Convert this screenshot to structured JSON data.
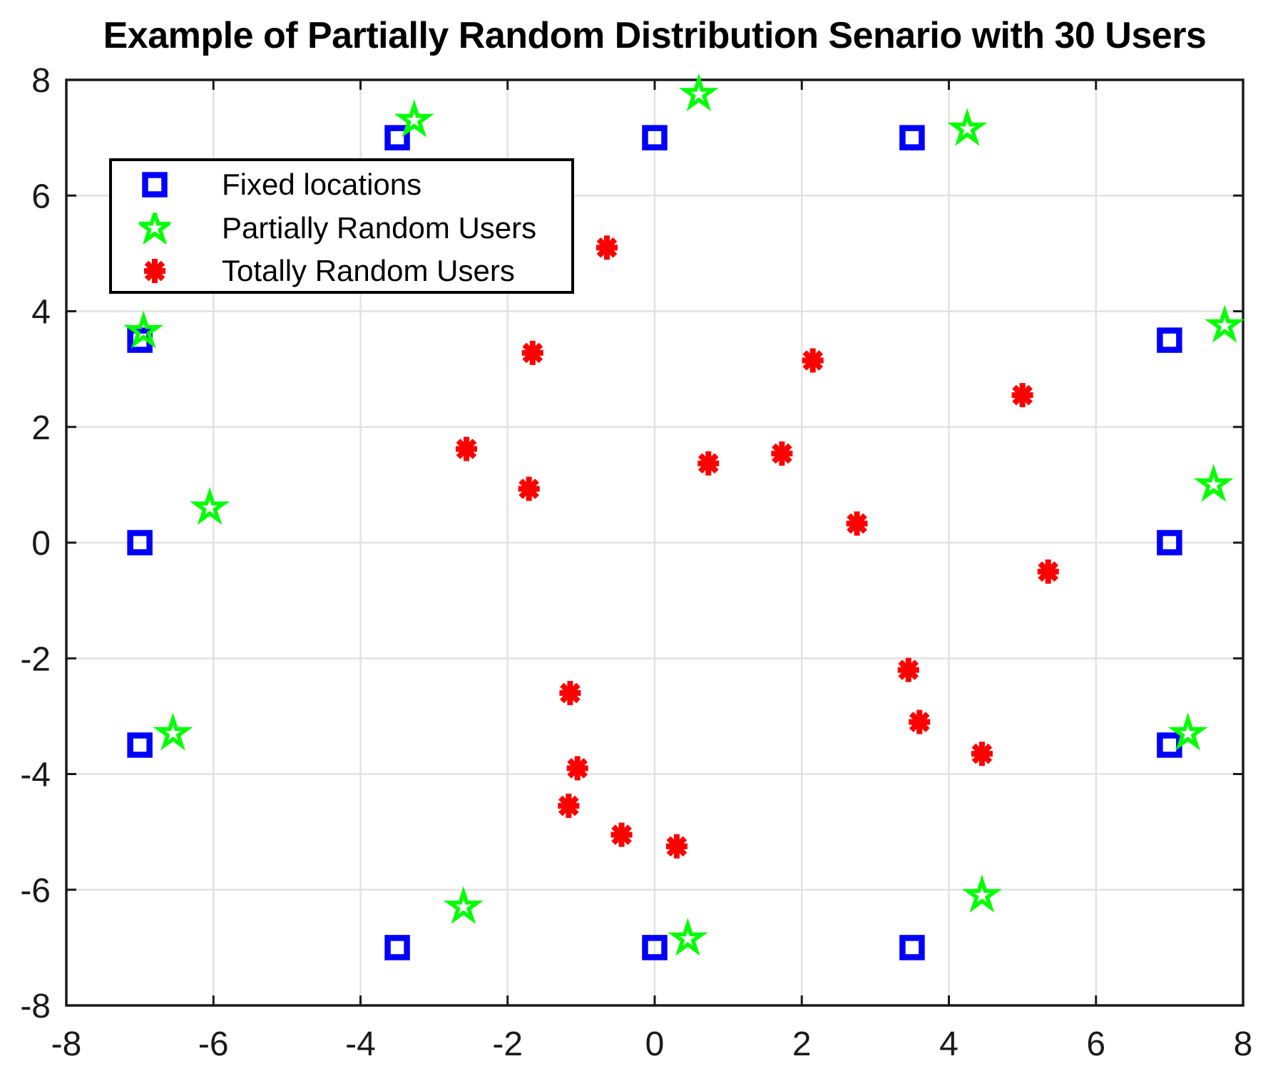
{
  "title": "Example of Partially Random Distribution Senario with 30 Users",
  "chart_data": {
    "type": "scatter",
    "title": "Example of Partially Random Distribution Senario with 30 Users",
    "xlabel": "",
    "ylabel": "",
    "xlim": [
      -8,
      8
    ],
    "ylim": [
      -8,
      8
    ],
    "xticks": [
      -8,
      -6,
      -4,
      -2,
      0,
      2,
      4,
      6,
      8
    ],
    "yticks": [
      -8,
      -6,
      -4,
      -2,
      0,
      2,
      4,
      6,
      8
    ],
    "grid": true,
    "legend_position": "top-left",
    "axis_color": "#1a1a1a",
    "grid_color": "#e2e2e2",
    "background_color": "#ffffff",
    "series": [
      {
        "name": "Fixed locations",
        "marker": "square",
        "color": "#0000ff",
        "points": [
          [
            -3.5,
            7
          ],
          [
            0,
            7
          ],
          [
            3.5,
            7
          ],
          [
            -7,
            3.5
          ],
          [
            -7,
            0
          ],
          [
            -7,
            -3.5
          ],
          [
            7,
            3.5
          ],
          [
            7,
            0
          ],
          [
            7,
            -3.5
          ],
          [
            -3.5,
            -7
          ],
          [
            0,
            -7
          ],
          [
            3.5,
            -7
          ]
        ]
      },
      {
        "name": "Partially Random Users",
        "marker": "pentagram",
        "color": "#00ff00",
        "points": [
          [
            -3.27,
            7.3
          ],
          [
            0.6,
            7.75
          ],
          [
            4.25,
            7.15
          ],
          [
            -6.95,
            3.65
          ],
          [
            -6.05,
            0.6
          ],
          [
            -6.55,
            -3.3
          ],
          [
            7.75,
            3.75
          ],
          [
            7.6,
            1.0
          ],
          [
            7.25,
            -3.3
          ],
          [
            -2.6,
            -6.3
          ],
          [
            0.45,
            -6.85
          ],
          [
            4.45,
            -6.1
          ]
        ]
      },
      {
        "name": "Totally Random Users",
        "marker": "asterisk",
        "color": "#ff0000",
        "points": [
          [
            -0.65,
            5.1
          ],
          [
            -1.66,
            3.28
          ],
          [
            2.15,
            3.15
          ],
          [
            5.0,
            2.55
          ],
          [
            -2.56,
            1.62
          ],
          [
            -1.71,
            0.93
          ],
          [
            0.73,
            1.37
          ],
          [
            1.73,
            1.54
          ],
          [
            2.75,
            0.33
          ],
          [
            5.35,
            -0.5
          ],
          [
            -1.15,
            -2.6
          ],
          [
            3.45,
            -2.2
          ],
          [
            3.6,
            -3.1
          ],
          [
            -1.05,
            -3.9
          ],
          [
            4.45,
            -3.65
          ],
          [
            -1.17,
            -4.55
          ],
          [
            -0.45,
            -5.05
          ],
          [
            0.3,
            -5.25
          ]
        ]
      }
    ]
  }
}
